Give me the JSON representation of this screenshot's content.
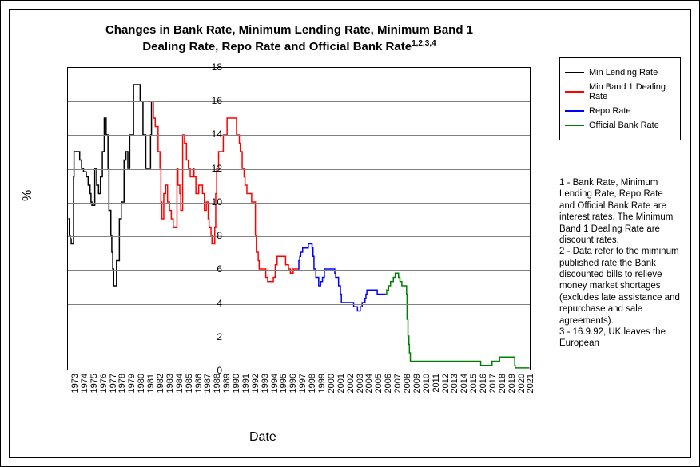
{
  "chart": {
    "type": "line",
    "title_line1": "Changes in Bank Rate, Minimum Lending Rate, Minimum Band 1",
    "title_line2": "Dealing Rate, Repo Rate and Official Bank Rate",
    "title_sup": "1,2,3,4",
    "ylabel": "%",
    "xlabel": "Date",
    "background_color": "#ffffff",
    "grid_color": "#808080",
    "border_color": "#000000",
    "title_fontsize": 15,
    "label_fontsize": 16,
    "tick_fontsize": 12,
    "line_width": 1.5,
    "xlim": [
      1973,
      2021.8
    ],
    "ylim": [
      0,
      18
    ],
    "ytick_step": 2,
    "xticks": [
      1973,
      1974,
      1975,
      1976,
      1977,
      1978,
      1979,
      1980,
      1981,
      1982,
      1983,
      1984,
      1985,
      1986,
      1987,
      1988,
      1989,
      1990,
      1991,
      1992,
      1993,
      1994,
      1995,
      1996,
      1997,
      1998,
      1999,
      2000,
      2001,
      2002,
      2003,
      2004,
      2005,
      2006,
      2007,
      2008,
      2009,
      2010,
      2011,
      2012,
      2013,
      2014,
      2015,
      2016,
      2017,
      2018,
      2019,
      2020,
      2021
    ],
    "series": [
      {
        "name": "Min Lending Rate",
        "color": "#000000",
        "points": [
          [
            1973.0,
            9.0
          ],
          [
            1973.1,
            8.0
          ],
          [
            1973.2,
            7.8
          ],
          [
            1973.3,
            7.5
          ],
          [
            1973.55,
            11.5
          ],
          [
            1973.6,
            13.0
          ],
          [
            1974.0,
            13.0
          ],
          [
            1974.2,
            12.5
          ],
          [
            1974.4,
            12.0
          ],
          [
            1974.6,
            11.8
          ],
          [
            1974.9,
            11.5
          ],
          [
            1975.1,
            11.0
          ],
          [
            1975.3,
            10.5
          ],
          [
            1975.4,
            10.0
          ],
          [
            1975.5,
            9.8
          ],
          [
            1975.8,
            12.0
          ],
          [
            1976.0,
            11.0
          ],
          [
            1976.2,
            10.5
          ],
          [
            1976.4,
            11.5
          ],
          [
            1976.6,
            13.0
          ],
          [
            1976.8,
            15.0
          ],
          [
            1977.0,
            14.0
          ],
          [
            1977.2,
            12.0
          ],
          [
            1977.3,
            9.5
          ],
          [
            1977.5,
            8.0
          ],
          [
            1977.6,
            7.0
          ],
          [
            1977.7,
            6.0
          ],
          [
            1977.8,
            5.0
          ],
          [
            1978.1,
            6.5
          ],
          [
            1978.4,
            9.0
          ],
          [
            1978.6,
            10.0
          ],
          [
            1978.9,
            12.5
          ],
          [
            1979.1,
            13.0
          ],
          [
            1979.3,
            12.0
          ],
          [
            1979.5,
            14.0
          ],
          [
            1979.9,
            17.0
          ],
          [
            1980.4,
            17.0
          ],
          [
            1980.6,
            16.0
          ],
          [
            1980.9,
            14.0
          ],
          [
            1981.2,
            12.0
          ],
          [
            1981.7,
            14.0
          ],
          [
            1981.8,
            16.0
          ]
        ]
      },
      {
        "name": "Min Band 1 Dealing Rate",
        "color": "#ff0000",
        "points": [
          [
            1981.8,
            16.0
          ],
          [
            1982.0,
            15.0
          ],
          [
            1982.2,
            14.5
          ],
          [
            1982.5,
            13.0
          ],
          [
            1982.7,
            12.0
          ],
          [
            1982.8,
            10.0
          ],
          [
            1982.9,
            9.0
          ],
          [
            1983.1,
            10.5
          ],
          [
            1983.3,
            11.0
          ],
          [
            1983.5,
            10.0
          ],
          [
            1983.7,
            9.5
          ],
          [
            1983.9,
            9.0
          ],
          [
            1984.1,
            8.5
          ],
          [
            1984.5,
            12.0
          ],
          [
            1984.6,
            11.0
          ],
          [
            1984.8,
            10.5
          ],
          [
            1984.9,
            9.5
          ],
          [
            1985.1,
            14.0
          ],
          [
            1985.3,
            13.5
          ],
          [
            1985.5,
            12.5
          ],
          [
            1985.7,
            12.0
          ],
          [
            1985.9,
            11.5
          ],
          [
            1986.2,
            12.0
          ],
          [
            1986.3,
            11.5
          ],
          [
            1986.5,
            10.5
          ],
          [
            1986.8,
            11.0
          ],
          [
            1987.0,
            11.0
          ],
          [
            1987.2,
            10.5
          ],
          [
            1987.4,
            9.5
          ],
          [
            1987.6,
            10.0
          ],
          [
            1987.8,
            9.0
          ],
          [
            1987.9,
            8.5
          ],
          [
            1988.1,
            8.0
          ],
          [
            1988.2,
            7.5
          ],
          [
            1988.5,
            8.5
          ],
          [
            1988.6,
            10.5
          ],
          [
            1988.7,
            12.0
          ],
          [
            1988.9,
            13.0
          ],
          [
            1989.4,
            14.0
          ],
          [
            1989.8,
            15.0
          ],
          [
            1990.5,
            15.0
          ],
          [
            1990.8,
            14.0
          ],
          [
            1991.1,
            13.5
          ],
          [
            1991.2,
            13.0
          ],
          [
            1991.4,
            12.0
          ],
          [
            1991.6,
            11.5
          ],
          [
            1991.7,
            11.0
          ],
          [
            1991.9,
            10.5
          ],
          [
            1992.3,
            10.5
          ],
          [
            1992.4,
            10.0
          ],
          [
            1992.7,
            10.0
          ],
          [
            1992.8,
            8.0
          ],
          [
            1992.9,
            7.0
          ],
          [
            1993.1,
            6.5
          ],
          [
            1993.2,
            6.0
          ],
          [
            1993.9,
            5.5
          ],
          [
            1994.1,
            5.25
          ],
          [
            1994.7,
            5.5
          ],
          [
            1994.9,
            6.25
          ],
          [
            1995.1,
            6.75
          ],
          [
            1995.9,
            6.75
          ],
          [
            1996.0,
            6.25
          ],
          [
            1996.3,
            6.0
          ],
          [
            1996.5,
            5.75
          ],
          [
            1996.8,
            6.0
          ],
          [
            1997.3,
            6.0
          ]
        ]
      },
      {
        "name": "Repo Rate",
        "color": "#0000ff",
        "points": [
          [
            1997.3,
            6.0
          ],
          [
            1997.4,
            6.5
          ],
          [
            1997.5,
            6.75
          ],
          [
            1997.6,
            7.0
          ],
          [
            1997.8,
            7.25
          ],
          [
            1998.4,
            7.5
          ],
          [
            1998.8,
            7.25
          ],
          [
            1998.9,
            6.75
          ],
          [
            1999.0,
            6.0
          ],
          [
            1999.2,
            5.5
          ],
          [
            1999.5,
            5.0
          ],
          [
            1999.7,
            5.25
          ],
          [
            1999.9,
            5.5
          ],
          [
            2000.1,
            6.0
          ],
          [
            2001.1,
            6.0
          ],
          [
            2001.2,
            5.75
          ],
          [
            2001.3,
            5.5
          ],
          [
            2001.6,
            5.0
          ],
          [
            2001.8,
            4.5
          ],
          [
            2001.9,
            4.0
          ],
          [
            2003.1,
            4.0
          ],
          [
            2003.2,
            3.75
          ],
          [
            2003.6,
            3.5
          ],
          [
            2003.9,
            3.75
          ],
          [
            2004.1,
            4.0
          ],
          [
            2004.4,
            4.25
          ],
          [
            2004.5,
            4.5
          ],
          [
            2004.6,
            4.75
          ],
          [
            2005.6,
            4.75
          ],
          [
            2005.7,
            4.5
          ],
          [
            2006.6,
            4.5
          ]
        ]
      },
      {
        "name": "Official Bank Rate",
        "color": "#008000",
        "points": [
          [
            2006.6,
            4.5
          ],
          [
            2006.7,
            4.75
          ],
          [
            2006.9,
            5.0
          ],
          [
            2007.1,
            5.25
          ],
          [
            2007.4,
            5.5
          ],
          [
            2007.6,
            5.75
          ],
          [
            2007.95,
            5.5
          ],
          [
            2008.1,
            5.25
          ],
          [
            2008.3,
            5.0
          ],
          [
            2008.8,
            4.5
          ],
          [
            2008.85,
            3.0
          ],
          [
            2008.95,
            2.0
          ],
          [
            2009.05,
            1.5
          ],
          [
            2009.1,
            1.0
          ],
          [
            2009.2,
            0.5
          ],
          [
            2016.6,
            0.5
          ],
          [
            2016.65,
            0.25
          ],
          [
            2017.8,
            0.25
          ],
          [
            2017.85,
            0.5
          ],
          [
            2018.6,
            0.5
          ],
          [
            2018.65,
            0.75
          ],
          [
            2020.2,
            0.75
          ],
          [
            2020.25,
            0.25
          ],
          [
            2020.3,
            0.1
          ],
          [
            2021.8,
            0.1
          ]
        ]
      }
    ]
  },
  "legend": {
    "items": [
      {
        "label": "Min Lending Rate",
        "color": "#000000"
      },
      {
        "label": "Min Band 1 Dealing Rate",
        "color": "#ff0000"
      },
      {
        "label": "Repo Rate",
        "color": "#0000ff"
      },
      {
        "label": "Official Bank Rate",
        "color": "#008000"
      }
    ]
  },
  "notes": {
    "text": "1 - Bank Rate, Minimum Lending Rate, Repo Rate and Official Bank Rate are interest rates.  The Minimum Band 1 Dealing Rate are discount rates.\n2 - Data refer to the miminum published rate the Bank discounted bills to relieve money market shortages (excludes late assistance and repurchase and sale agreements).\n3 - 16.9.92, UK leaves the European"
  }
}
